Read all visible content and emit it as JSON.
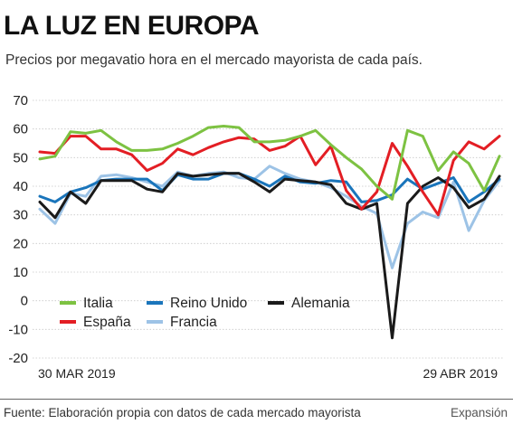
{
  "header": {
    "title": "LA LUZ EN EUROPA",
    "subtitle": "Precios por megavatio hora en el mercado mayorista de cada país."
  },
  "footer": {
    "source_label": "Fuente:",
    "source_text": "Elaboración propia con datos de cada mercado mayorista",
    "credit": "Expansión"
  },
  "chart_data": {
    "type": "line",
    "ylim": [
      -20,
      70
    ],
    "yticks": [
      "70",
      "60",
      "50",
      "40",
      "30",
      "20",
      "10",
      "0",
      "-10",
      "-20"
    ],
    "x_start_label": "30 MAR 2019",
    "x_end_label": "29 ABR 2019",
    "x": [
      1,
      2,
      3,
      4,
      5,
      6,
      7,
      8,
      9,
      10,
      11,
      12,
      13,
      14,
      15,
      16,
      17,
      18,
      19,
      20,
      21,
      22,
      23,
      24,
      25,
      26,
      27,
      28,
      29,
      30,
      31
    ],
    "legend_position": "bottom-left",
    "series": [
      {
        "name": "Italia",
        "color": "#7dc242",
        "values": [
          49.5,
          50.5,
          59,
          58.5,
          59.5,
          55.5,
          52.5,
          52.5,
          53,
          55,
          57.5,
          60.5,
          61,
          60.5,
          55.5,
          55.5,
          56,
          57.5,
          59.5,
          54.5,
          50,
          46,
          40,
          35.5,
          59.5,
          57.5,
          45.5,
          52,
          48,
          38.5,
          50.5
        ]
      },
      {
        "name": "España",
        "color": "#e31e24",
        "values": [
          52,
          51.5,
          57.5,
          57.5,
          53,
          53,
          51,
          45.5,
          48,
          53,
          51,
          53.5,
          55.5,
          57,
          56.5,
          52.5,
          54,
          57.5,
          47.5,
          54,
          38.5,
          32,
          38,
          55,
          47,
          38,
          30,
          49,
          55.5,
          53,
          57.5
        ]
      },
      {
        "name": "Reino Unido",
        "color": "#1a75bb",
        "values": [
          36.5,
          34.5,
          38,
          39.5,
          42,
          42.5,
          42.5,
          42.5,
          38.5,
          44,
          42.5,
          42.5,
          44.5,
          44.5,
          42.5,
          40,
          43.5,
          41.5,
          41,
          42,
          41.5,
          34.5,
          35,
          37,
          42.5,
          39,
          41,
          43,
          34.5,
          38,
          42.5
        ]
      },
      {
        "name": "Alemania",
        "color": "#1a1a1a",
        "values": [
          34.5,
          29,
          38,
          34,
          42,
          42,
          42,
          39,
          38,
          44.5,
          43.5,
          44,
          44.5,
          44.5,
          41.5,
          38,
          42.5,
          42,
          41.5,
          40.5,
          34,
          32,
          34,
          -13,
          34,
          40,
          43,
          39.5,
          32.5,
          35.5,
          43.5
        ]
      },
      {
        "name": "Francia",
        "color": "#9dc3e6",
        "values": [
          32,
          27,
          37.5,
          36.5,
          43.5,
          44,
          43,
          41.5,
          40,
          45,
          43.5,
          44.5,
          45,
          43,
          42.5,
          47,
          44.5,
          42.5,
          41.5,
          39.5,
          36.5,
          33,
          30.5,
          11.5,
          27,
          31,
          29,
          41.5,
          24.5,
          35,
          42
        ]
      }
    ]
  }
}
